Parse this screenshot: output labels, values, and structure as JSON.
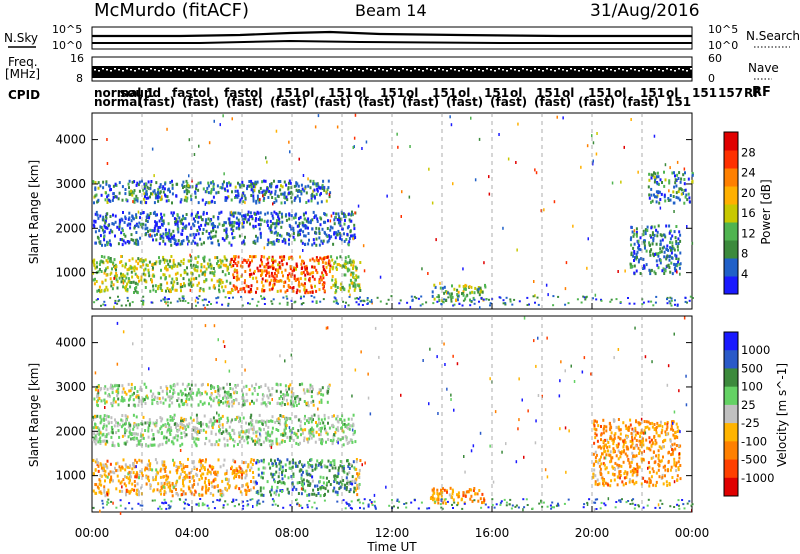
{
  "header": {
    "station": "McMurdo (fitACF)",
    "beam": "Beam 14",
    "date": "31/Aug/2016"
  },
  "side_labels": {
    "nsky": "N.Sky",
    "freq_line1": "Freq.",
    "freq_line2": "[MHz]",
    "cpid": "CPID",
    "nsearch": "N.Search",
    "nave": "Nave",
    "rf": "RF"
  },
  "strip_ticks": {
    "nsky_top": "10^5",
    "nsky_bottom": "10^0",
    "nsearch_top": "10^5",
    "nsearch_bottom": "10^0",
    "freq_top": "16",
    "freq_bottom": "8",
    "nave_top": "60",
    "nave_bottom": "0"
  },
  "cpid_labels": {
    "row1": [
      "normal",
      "sound",
      "1",
      "fast",
      "ol",
      "fast",
      "ol",
      "151",
      "ol",
      "151",
      "ol",
      "151",
      "ol",
      "151",
      "ol",
      "151",
      "ol",
      "151",
      "ol",
      "151",
      "ol",
      "151",
      "ol",
      "151",
      "157",
      "RF"
    ],
    "row2": [
      "normal",
      "(fast)",
      "(fast)",
      "(fast)",
      "(fast)",
      "(fast)",
      "(fast)",
      "(fast)",
      "(fast)",
      "(fast)",
      "(fast)",
      "(fast)",
      "(fast)",
      "151"
    ]
  },
  "chart_data": [
    {
      "type": "heatmap",
      "panel": "power",
      "ylabel": "Slant Range [km]",
      "ylim": [
        180,
        4600
      ],
      "yticks": [
        1000,
        2000,
        3000,
        4000
      ],
      "xlim_hours": [
        0,
        24
      ],
      "xticks": [
        "00:00",
        "04:00",
        "08:00",
        "12:00",
        "16:00",
        "20:00",
        "00:00"
      ],
      "colorbar": {
        "label": "Power [dB]",
        "ticks": [
          "4",
          "8",
          "12",
          "16",
          "20",
          "24",
          "28"
        ],
        "colors": [
          "#1a1aff",
          "#2060c8",
          "#3c8a3c",
          "#50b450",
          "#c8c800",
          "#ffb000",
          "#ff8000",
          "#ff3000",
          "#e00000"
        ]
      },
      "echo_regions": [
        {
          "t_start": 0.0,
          "t_end": 10.7,
          "range_start": 580,
          "range_end": 1400,
          "note": "main echo band, peak around 07:30-08:30"
        },
        {
          "t_start": 0.0,
          "t_end": 10.5,
          "range_start": 1650,
          "range_end": 2400,
          "note": "middle band"
        },
        {
          "t_start": 0.0,
          "t_end": 9.5,
          "range_start": 2600,
          "range_end": 3100,
          "note": "upper band"
        },
        {
          "t_start": 13.5,
          "t_end": 15.7,
          "range_start": 400,
          "range_end": 750,
          "note": "short afternoon echo"
        },
        {
          "t_start": 21.5,
          "t_end": 23.5,
          "range_start": 1000,
          "range_end": 2100,
          "note": "late echoes"
        },
        {
          "t_start": 22.2,
          "t_end": 24.0,
          "range_start": 2600,
          "range_end": 3300,
          "note": "late upper echoes"
        }
      ]
    },
    {
      "type": "heatmap",
      "panel": "velocity",
      "ylabel": "Slant Range [km]",
      "ylim": [
        180,
        4600
      ],
      "yticks": [
        1000,
        2000,
        3000,
        4000
      ],
      "xlim_hours": [
        0,
        24
      ],
      "xticks": [
        "00:00",
        "04:00",
        "08:00",
        "12:00",
        "16:00",
        "20:00",
        "00:00"
      ],
      "xlabel": "Time UT",
      "colorbar": {
        "label": "Velocity [m s^-1]",
        "ticks": [
          "1000",
          "500",
          "100",
          "25",
          "-25",
          "-100",
          "-500",
          "-1000"
        ],
        "colors": [
          "#1a1aff",
          "#2a5ac8",
          "#3c8a3c",
          "#64d264",
          "#c0c0c0",
          "#ffb400",
          "#ff8000",
          "#ff4000",
          "#e00000"
        ]
      },
      "echo_regions": [
        {
          "t_start": 0.0,
          "t_end": 10.7,
          "range_start": 580,
          "range_end": 1400,
          "note": "mostly negative velocity (orange), positive near 07:00-10:00"
        },
        {
          "t_start": 0.0,
          "t_end": 10.5,
          "range_start": 1700,
          "range_end": 2400,
          "note": "grey low velocity"
        },
        {
          "t_start": 0.0,
          "t_end": 9.5,
          "range_start": 2600,
          "range_end": 3100,
          "note": "grey low velocity"
        },
        {
          "t_start": 13.5,
          "t_end": 15.7,
          "range_start": 400,
          "range_end": 750,
          "note": "orange"
        },
        {
          "t_start": 20.0,
          "t_end": 23.5,
          "range_start": 800,
          "range_end": 2300,
          "note": "orange negative"
        }
      ]
    }
  ]
}
